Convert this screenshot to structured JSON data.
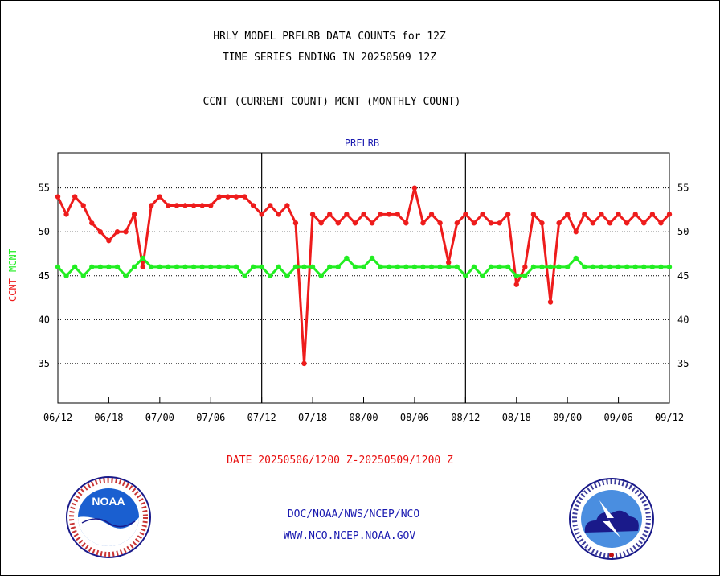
{
  "header": {
    "title_line1": "HRLY MODEL PRFLRB DATA COUNTS for 12Z",
    "title_line2": "TIME SERIES ENDING IN 20250509 12Z",
    "subtitle": "CCNT (CURRENT COUNT) MCNT (MONTHLY COUNT)"
  },
  "footer": {
    "date_range": "DATE 20250506/1200 Z-20250509/1200 Z",
    "org": "DOC/NOAA/NWS/NCEP/NCO",
    "url": "WWW.NCO.NCEP.NOAA.GOV"
  },
  "logos": {
    "left": {
      "icon": "noaa-logo-icon",
      "text": "NOAA",
      "ring_text": "NATIONAL OCEANIC AND ATMOSPHERIC ADMINISTRATION · U.S. DEPARTMENT OF COMMERCE"
    },
    "right": {
      "icon": "nws-logo-icon",
      "ring_text": "NATIONAL WEATHER SERVICE"
    }
  },
  "colors": {
    "ccnt": "#ee1c1c",
    "mcnt": "#22ee22",
    "panel_title": "#1a1ab0"
  },
  "chart_data": {
    "type": "line",
    "panel_title": "PRFLRB",
    "ylabel_ccnt": "CCNT",
    "ylabel_mcnt": "MCNT",
    "ylim": [
      30.5,
      59
    ],
    "yticks": [
      35,
      40,
      45,
      50,
      55
    ],
    "grid": "horizontal dotted at y ticks",
    "x_tick_labels": [
      "06/12",
      "06/18",
      "07/00",
      "07/06",
      "07/12",
      "07/18",
      "08/00",
      "08/06",
      "08/12",
      "08/18",
      "09/00",
      "09/06",
      "09/12"
    ],
    "x_range_hours": [
      0,
      72
    ],
    "series": [
      {
        "name": "CCNT",
        "color": "#ee1c1c",
        "x": [
          0,
          1,
          2,
          3,
          4,
          5,
          6,
          7,
          8,
          9,
          10,
          11,
          12,
          13,
          14,
          15,
          16,
          17,
          18,
          19,
          20,
          21,
          22,
          23,
          24,
          25,
          26,
          27,
          28,
          29,
          30,
          31,
          32,
          33,
          34,
          35,
          36,
          37,
          38,
          39,
          40,
          41,
          42,
          43,
          44,
          45,
          46,
          47,
          48,
          49,
          50,
          51,
          52,
          53,
          54,
          55,
          56,
          57,
          58,
          59,
          60,
          61,
          62,
          63,
          64,
          65,
          66,
          67,
          68,
          69,
          70,
          71,
          72
        ],
        "values": [
          54,
          52,
          54,
          53,
          51,
          50,
          49,
          50,
          50,
          52,
          46,
          53,
          54,
          53,
          53,
          53,
          53,
          53,
          53,
          54,
          54,
          54,
          54,
          53,
          52,
          53,
          52,
          53,
          51,
          35,
          52,
          51,
          52,
          51,
          52,
          51,
          52,
          51,
          52,
          52,
          52,
          51,
          55,
          51,
          52,
          51,
          46.5,
          51,
          52,
          51,
          52,
          51,
          51,
          52,
          44,
          46,
          52,
          51,
          42,
          51,
          52,
          50,
          52,
          51,
          52,
          51,
          52,
          51,
          52,
          51,
          52,
          51,
          52
        ]
      },
      {
        "name": "MCNT",
        "color": "#22ee22",
        "x": [
          0,
          1,
          2,
          3,
          4,
          5,
          6,
          7,
          8,
          9,
          10,
          11,
          12,
          13,
          14,
          15,
          16,
          17,
          18,
          19,
          20,
          21,
          22,
          23,
          24,
          25,
          26,
          27,
          28,
          29,
          30,
          31,
          32,
          33,
          34,
          35,
          36,
          37,
          38,
          39,
          40,
          41,
          42,
          43,
          44,
          45,
          46,
          47,
          48,
          49,
          50,
          51,
          52,
          53,
          54,
          55,
          56,
          57,
          58,
          59,
          60,
          61,
          62,
          63,
          64,
          65,
          66,
          67,
          68,
          69,
          70,
          71,
          72
        ],
        "values": [
          46,
          45,
          46,
          45,
          46,
          46,
          46,
          46,
          45,
          46,
          47,
          46,
          46,
          46,
          46,
          46,
          46,
          46,
          46,
          46,
          46,
          46,
          45,
          46,
          46,
          45,
          46,
          45,
          46,
          46,
          46,
          45,
          46,
          46,
          47,
          46,
          46,
          47,
          46,
          46,
          46,
          46,
          46,
          46,
          46,
          46,
          46,
          46,
          45,
          46,
          45,
          46,
          46,
          46,
          45,
          45,
          46,
          46,
          46,
          46,
          46,
          47,
          46,
          46,
          46,
          46,
          46,
          46,
          46,
          46,
          46,
          46,
          46
        ]
      }
    ]
  }
}
